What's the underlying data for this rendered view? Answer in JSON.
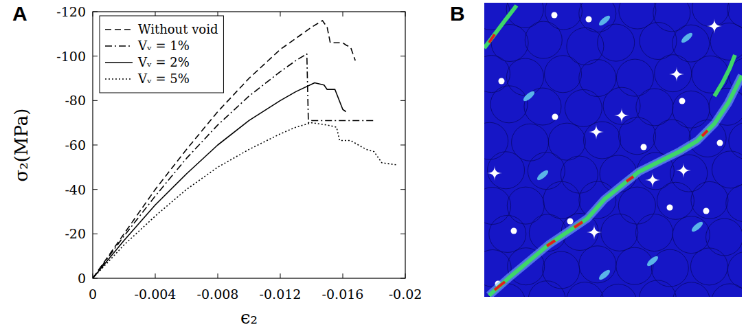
{
  "panel_labels": [
    "A",
    "B"
  ],
  "chart_data": {
    "type": "line",
    "x_label": "ϵ₂",
    "y_label": "σ₂(MPa)",
    "xlim": [
      0,
      -0.02
    ],
    "xticks": [
      0,
      -0.004,
      -0.008,
      -0.012,
      -0.016,
      -0.02
    ],
    "ylim": [
      0,
      -120
    ],
    "yticks": [
      0,
      -20,
      -40,
      -60,
      -80,
      -100,
      -120
    ],
    "legend": "upper left",
    "series": [
      {
        "name": "Without void",
        "color": "#000000",
        "line_style": "dashed",
        "x": [
          0,
          -0.002,
          -0.004,
          -0.006,
          -0.008,
          -0.01,
          -0.012,
          -0.013,
          -0.014,
          -0.0147,
          -0.015,
          -0.0152,
          -0.016,
          -0.0162,
          -0.0165,
          -0.0168
        ],
        "values": [
          0,
          -20,
          -40,
          -58,
          -75,
          -90,
          -103,
          -108,
          -113,
          -116,
          -113,
          -106,
          -106,
          -105,
          -104,
          -98
        ]
      },
      {
        "name": "Vᵥ = 1%",
        "color": "#000000",
        "line_style": "dashdot",
        "x": [
          0,
          -0.002,
          -0.004,
          -0.006,
          -0.008,
          -0.01,
          -0.012,
          -0.013,
          -0.0137,
          -0.0138,
          -0.014,
          -0.016,
          -0.018
        ],
        "values": [
          0,
          -19,
          -37,
          -54,
          -69,
          -82,
          -93,
          -98,
          -101,
          -70,
          -71,
          -71,
          -71
        ]
      },
      {
        "name": "Vᵥ = 2%",
        "color": "#000000",
        "line_style": "solid",
        "x": [
          0,
          -0.002,
          -0.004,
          -0.006,
          -0.008,
          -0.01,
          -0.012,
          -0.013,
          -0.0142,
          -0.0148,
          -0.015,
          -0.0155,
          -0.016,
          -0.0162
        ],
        "values": [
          0,
          -17,
          -33,
          -47,
          -60,
          -71,
          -80,
          -84,
          -88,
          -87,
          -85,
          -85,
          -76,
          -75
        ]
      },
      {
        "name": "Vᵥ = 5%",
        "color": "#000000",
        "line_style": "dotted",
        "x": [
          0,
          -0.002,
          -0.004,
          -0.006,
          -0.008,
          -0.01,
          -0.012,
          -0.013,
          -0.014,
          -0.015,
          -0.0156,
          -0.0158,
          -0.0165,
          -0.017,
          -0.0175,
          -0.018,
          -0.0185,
          -0.0195
        ],
        "values": [
          0,
          -15,
          -28,
          -40,
          -50,
          -58,
          -65,
          -68,
          -70,
          -69,
          -68,
          -62,
          -62,
          -60,
          -58,
          -57,
          -52,
          -51
        ]
      }
    ]
  }
}
